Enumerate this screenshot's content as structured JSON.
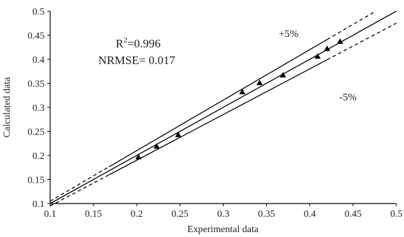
{
  "chart_data": {
    "type": "scatter",
    "xlabel": "Experimental data",
    "ylabel": "Calculated data",
    "xlim": [
      0.1,
      0.5
    ],
    "ylim": [
      0.1,
      0.5
    ],
    "xticks": [
      "0.1",
      "0.15",
      "0.2",
      "0.25",
      "0.3",
      "0.35",
      "0.4",
      "0.45",
      "0.5"
    ],
    "yticks": [
      "0.1",
      "0.15",
      "0.2",
      "0.25",
      "0.3",
      "0.35",
      "0.4",
      "0.45",
      "0.5"
    ],
    "grid": false,
    "points": [
      {
        "x": 0.202,
        "y": 0.197
      },
      {
        "x": 0.223,
        "y": 0.219
      },
      {
        "x": 0.248,
        "y": 0.243
      },
      {
        "x": 0.322,
        "y": 0.332
      },
      {
        "x": 0.342,
        "y": 0.351
      },
      {
        "x": 0.369,
        "y": 0.367
      },
      {
        "x": 0.409,
        "y": 0.406
      },
      {
        "x": 0.42,
        "y": 0.422
      },
      {
        "x": 0.435,
        "y": 0.437
      }
    ],
    "reference_lines": [
      {
        "kind": "identity",
        "style": "solid",
        "x_range": [
          0.1,
          0.5
        ]
      },
      {
        "kind": "plus",
        "percent": 5,
        "label": "+5%",
        "style": "solid",
        "x_range": [
          0.168,
          0.42
        ]
      },
      {
        "kind": "minus",
        "percent": 5,
        "label": "-5%",
        "style": "solid",
        "x_range": [
          0.168,
          0.42
        ]
      },
      {
        "kind": "plus",
        "percent": 5,
        "style": "dashed",
        "x_range": [
          0.1,
          0.168
        ]
      },
      {
        "kind": "plus",
        "percent": 5,
        "style": "dashed",
        "x_range": [
          0.42,
          0.476
        ]
      },
      {
        "kind": "minus",
        "percent": 5,
        "style": "dashed",
        "x_range": [
          0.1,
          0.168
        ]
      },
      {
        "kind": "minus",
        "percent": 5,
        "style": "dashed",
        "x_range": [
          0.42,
          0.5
        ]
      }
    ],
    "annotations": {
      "r2_prefix": "R",
      "r2_sup": "2",
      "r2_value": "=0.996",
      "nrmse": "NRMSE= 0.017"
    }
  }
}
